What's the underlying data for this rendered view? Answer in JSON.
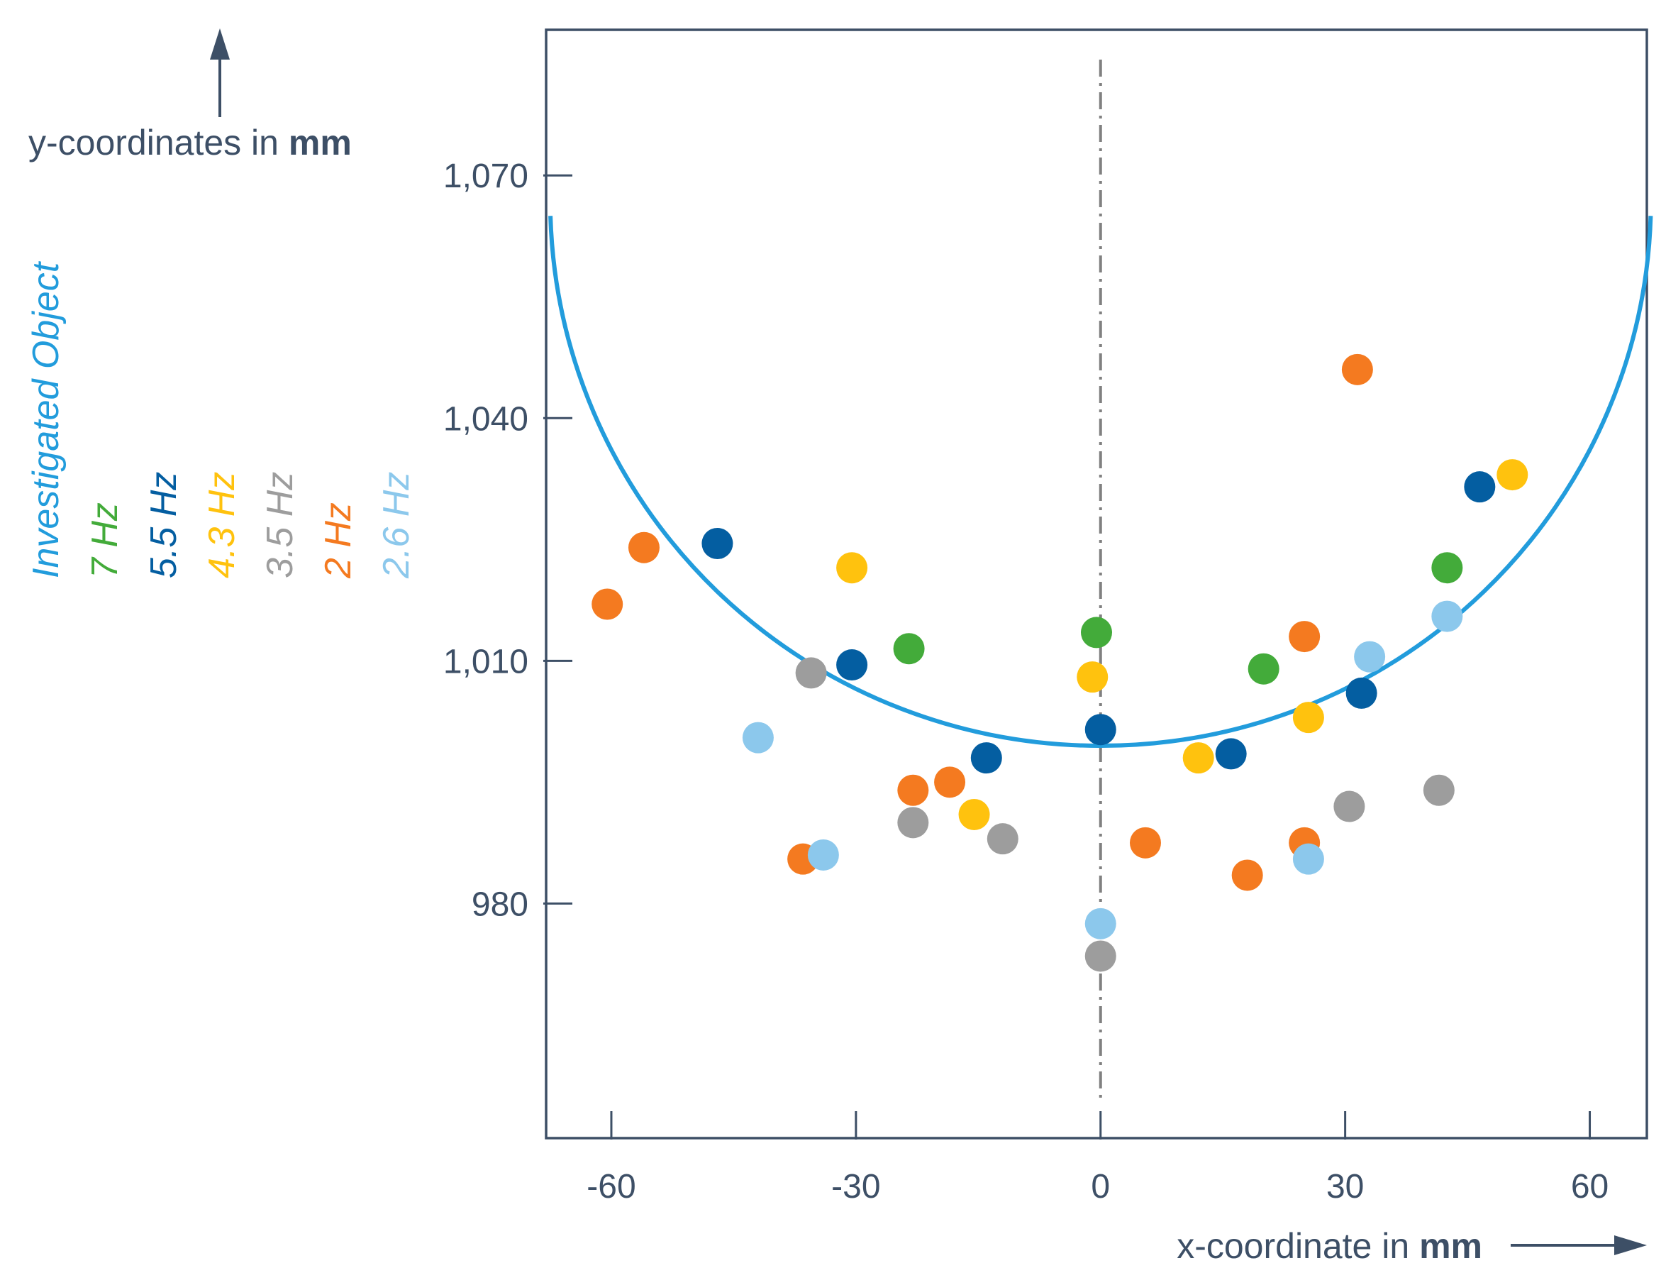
{
  "chart_data": {
    "type": "scatter",
    "xlabel": "x-coordinate in",
    "xlabel_unit": "mm",
    "ylabel": "y-coordinates in",
    "ylabel_unit": "mm",
    "xlim": [
      -68,
      67
    ],
    "ylim": [
      951,
      1088
    ],
    "x_ticks": [
      -60,
      -30,
      0,
      30,
      60
    ],
    "x_tick_labels": [
      "-60",
      "-30",
      "0",
      "30",
      "60"
    ],
    "y_ticks": [
      980,
      1010,
      1040,
      1070
    ],
    "y_tick_labels": [
      "980",
      "1,010",
      "1,040",
      "1,070"
    ],
    "grid": false,
    "legend_position": "left, rotated vertical",
    "symmetry_axis": {
      "x": 0,
      "style": "dash-dot",
      "color": "#808080"
    },
    "investigated_object": {
      "name": "Investigated Object",
      "color": "#229cdc",
      "shape": "semicircle",
      "center": [
        0,
        1067
      ],
      "radius": 67.5
    },
    "series": [
      {
        "name": "7 Hz",
        "color": "#43ab3a",
        "points": [
          [
            -23.5,
            1011.5
          ],
          [
            -0.5,
            1013.5
          ],
          [
            20,
            1009
          ],
          [
            42.5,
            1021.5
          ]
        ]
      },
      {
        "name": "5.5 Hz",
        "color": "#045ea1",
        "points": [
          [
            -47,
            1024.5
          ],
          [
            -30.5,
            1009.5
          ],
          [
            -14,
            998
          ],
          [
            0,
            1001.5
          ],
          [
            16,
            998.5
          ],
          [
            32,
            1006
          ],
          [
            46.5,
            1031.5
          ]
        ]
      },
      {
        "name": "4.3 Hz",
        "color": "#ffc20e",
        "points": [
          [
            -30.5,
            1021.5
          ],
          [
            -15.5,
            991
          ],
          [
            -1,
            1008
          ],
          [
            12,
            998
          ],
          [
            25.5,
            1003
          ],
          [
            50.5,
            1033
          ]
        ]
      },
      {
        "name": "3.5 Hz",
        "color": "#9d9d9d",
        "points": [
          [
            -35.5,
            1008.5
          ],
          [
            -23,
            990
          ],
          [
            -12,
            988
          ],
          [
            0,
            973.5
          ],
          [
            30.5,
            992
          ],
          [
            41.5,
            994
          ]
        ]
      },
      {
        "name": "2 Hz",
        "color": "#f47a20",
        "points": [
          [
            -60.5,
            1017
          ],
          [
            -56,
            1024
          ],
          [
            -36.5,
            985.5
          ],
          [
            -23,
            994
          ],
          [
            -18.5,
            995
          ],
          [
            5.5,
            987.5
          ],
          [
            18,
            983.5
          ],
          [
            25,
            1013
          ],
          [
            25,
            987.5
          ],
          [
            31.5,
            1046
          ]
        ]
      },
      {
        "name": "2.6 Hz",
        "color": "#8cc8ec",
        "points": [
          [
            -42,
            1000.5
          ],
          [
            -34,
            986
          ],
          [
            0,
            977.5
          ],
          [
            25.5,
            985.5
          ],
          [
            33,
            1010.5
          ],
          [
            42.5,
            1015.5
          ]
        ]
      }
    ]
  }
}
